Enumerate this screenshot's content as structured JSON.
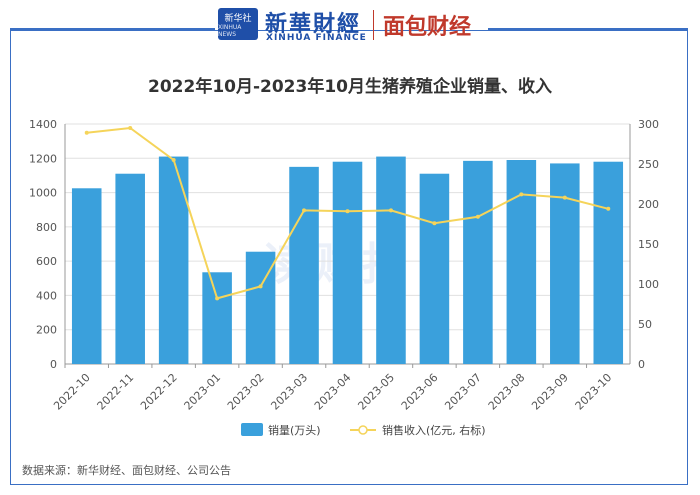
{
  "header": {
    "logo_cn": "新华社",
    "logo_en_small": "XINHUA NEWS",
    "brand_cn": "新華財經",
    "brand_en": "XINHUA FINANCE",
    "partner": "面包财经"
  },
  "watermark": "读财报",
  "source_note": "数据来源：新华财经、面包财经、公司公告",
  "colors": {
    "bar": "#3aa0dc",
    "line": "#f5d45a",
    "frame": "#3a6fc4",
    "grid": "#e0e0e0"
  },
  "chart_data": {
    "type": "bar",
    "title": "2022年10月-2023年10月生猪养殖企业销量、收入",
    "categories": [
      "2022-10",
      "2022-11",
      "2022-12",
      "2023-01",
      "2023-02",
      "2023-03",
      "2023-04",
      "2023-05",
      "2023-06",
      "2023-07",
      "2023-08",
      "2023-09",
      "2023-10"
    ],
    "series": [
      {
        "name": "销量(万头)",
        "kind": "bar",
        "axis": "left",
        "values": [
          1025,
          1110,
          1210,
          535,
          655,
          1150,
          1180,
          1210,
          1110,
          1185,
          1190,
          1170,
          1180
        ]
      },
      {
        "name": "销售收入(亿元, 右标)",
        "kind": "line",
        "axis": "right",
        "values": [
          289,
          295,
          255,
          82,
          97,
          192,
          191,
          192,
          176,
          184,
          212,
          208,
          194
        ]
      }
    ],
    "y_left": {
      "min": 0,
      "max": 1400,
      "ticks": [
        0,
        200,
        400,
        600,
        800,
        1000,
        1200,
        1400
      ]
    },
    "y_right": {
      "min": 0,
      "max": 300,
      "ticks": [
        0,
        50,
        100,
        150,
        200,
        250,
        300
      ]
    },
    "grid": true,
    "legend_position": "bottom"
  }
}
